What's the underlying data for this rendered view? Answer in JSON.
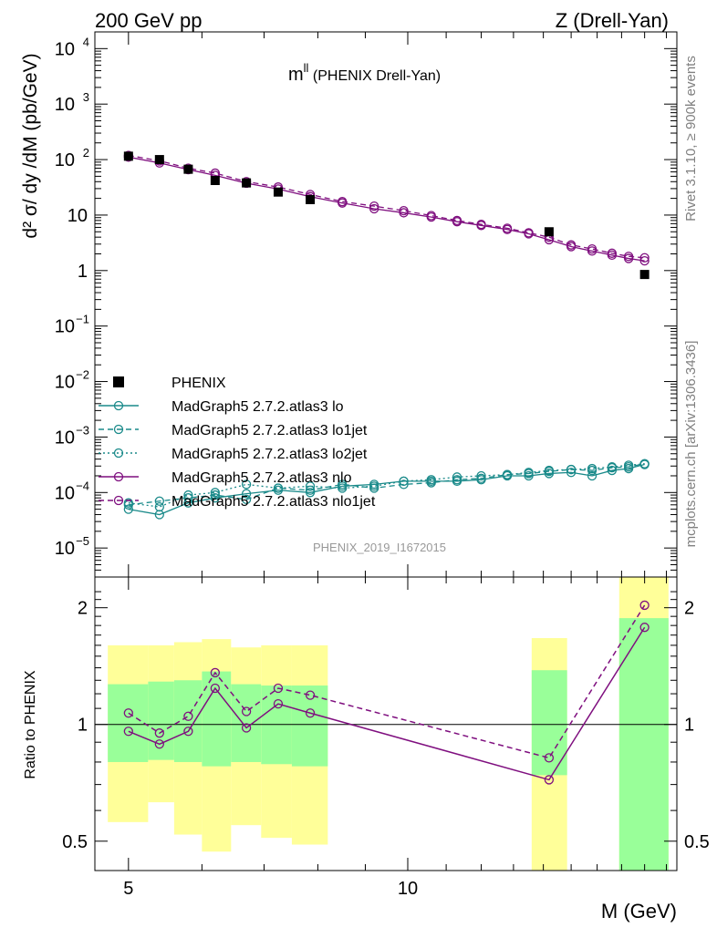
{
  "header": {
    "left": "200 GeV pp",
    "right": "Z (Drell-Yan)",
    "plot_label_main": "m",
    "plot_label_sup": "ll",
    "plot_label_rest": " (PHENIX Drell-Yan)",
    "analysis_id": "PHENIX_2019_I1672015"
  },
  "side": {
    "rivet": "Rivet 3.1.10, ≥ 900k events",
    "mcplots": "mcplots.cern.ch [arXiv:1306.3436]"
  },
  "axes": {
    "ylabel_main": "d² σ/ dy /dM (pb/GeV)",
    "ylabel_ratio": "Ratio to PHENIX",
    "xlabel": "M (GeV)"
  },
  "colors": {
    "data": "#000000",
    "teal": "#1a8a8a",
    "purple": "#7f0f7f",
    "band_inner": "#99ff99",
    "band_outer": "#ffff99"
  },
  "chart_data": {
    "type": "scatter",
    "x_scale": "log",
    "xlim": [
      4.6,
      19.5
    ],
    "main_panel": {
      "y_scale": "log",
      "ylim": [
        3e-06,
        20000
      ],
      "y_ticks": [
        {
          "v": 1e-05,
          "b": "10",
          "e": "−5"
        },
        {
          "v": 0.0001,
          "b": "10",
          "e": "−4"
        },
        {
          "v": 0.001,
          "b": "10",
          "e": "−3"
        },
        {
          "v": 0.01,
          "b": "10",
          "e": "−2"
        },
        {
          "v": 0.1,
          "b": "10",
          "e": "−1"
        },
        {
          "v": 1,
          "b": "1",
          "e": ""
        },
        {
          "v": 10,
          "b": "10",
          "e": ""
        },
        {
          "v": 100,
          "b": "10",
          "e": "2"
        },
        {
          "v": 1000,
          "b": "10",
          "e": "3"
        },
        {
          "v": 10000,
          "b": "10",
          "e": "4"
        }
      ]
    },
    "ratio_panel": {
      "y_scale": "log",
      "ylim": [
        0.42,
        2.4
      ],
      "y_ticks": [
        {
          "v": 0.5,
          "label": "0.5"
        },
        {
          "v": 1,
          "label": "1"
        },
        {
          "v": 2,
          "label": "2"
        }
      ]
    },
    "x_ticks": [
      {
        "v": 5,
        "label": "5"
      },
      {
        "v": 10,
        "label": "10"
      }
    ],
    "legend": [
      {
        "label": "PHENIX",
        "kind": "data"
      },
      {
        "label": "MadGraph5 2.7.2.atlas3 lo",
        "kind": "teal-solid"
      },
      {
        "label": "MadGraph5 2.7.2.atlas3 lo1jet",
        "kind": "teal-dashed"
      },
      {
        "label": "MadGraph5 2.7.2.atlas3 lo2jet",
        "kind": "teal-dotted"
      },
      {
        "label": "MadGraph5 2.7.2.atlas3 nlo",
        "kind": "purple-solid"
      },
      {
        "label": "MadGraph5 2.7.2.atlas3 nlo1jet",
        "kind": "purple-dashed"
      }
    ],
    "phenix": {
      "x": [
        5.0,
        5.4,
        5.8,
        6.2,
        6.7,
        7.25,
        7.85,
        14.2,
        18.0
      ],
      "y": [
        115,
        100,
        67,
        42,
        38,
        26,
        19,
        5.0,
        0.85
      ],
      "ratio_bands": [
        {
          "x0": 4.75,
          "x1": 5.25,
          "in_lo": 0.8,
          "in_hi": 1.27,
          "out_lo": 0.56,
          "out_hi": 1.6
        },
        {
          "x0": 5.25,
          "x1": 5.6,
          "in_lo": 0.81,
          "in_hi": 1.29,
          "out_lo": 0.63,
          "out_hi": 1.6
        },
        {
          "x0": 5.6,
          "x1": 6.0,
          "in_lo": 0.8,
          "in_hi": 1.3,
          "out_lo": 0.52,
          "out_hi": 1.63
        },
        {
          "x0": 6.0,
          "x1": 6.45,
          "in_lo": 0.78,
          "in_hi": 1.37,
          "out_lo": 0.47,
          "out_hi": 1.66
        },
        {
          "x0": 6.45,
          "x1": 6.95,
          "in_lo": 0.8,
          "in_hi": 1.27,
          "out_lo": 0.55,
          "out_hi": 1.58
        },
        {
          "x0": 6.95,
          "x1": 7.5,
          "in_lo": 0.79,
          "in_hi": 1.26,
          "out_lo": 0.51,
          "out_hi": 1.6
        },
        {
          "x0": 7.5,
          "x1": 8.2,
          "in_lo": 0.78,
          "in_hi": 1.26,
          "out_lo": 0.49,
          "out_hi": 1.6
        },
        {
          "x0": 13.6,
          "x1": 14.85,
          "in_lo": 0.74,
          "in_hi": 1.38,
          "out_lo": 0.42,
          "out_hi": 1.67
        },
        {
          "x0": 16.9,
          "x1": 19.1,
          "in_lo": 0.42,
          "in_hi": 1.88,
          "out_lo": 0.42,
          "out_hi": 2.4
        }
      ]
    },
    "series": [
      {
        "name": "MadGraph5 2.7.2.atlas3 lo",
        "style": "teal-solid",
        "x": [
          5.0,
          5.4,
          5.8,
          6.2,
          6.7,
          7.25,
          7.85,
          8.5,
          9.2,
          9.9,
          10.6,
          11.3,
          12.0,
          12.8,
          13.5,
          14.2,
          15.0,
          15.8,
          16.6,
          17.3,
          18.0
        ],
        "y": [
          5e-05,
          4e-05,
          6.5e-05,
          8e-05,
          9.5e-05,
          0.00011,
          0.0001,
          0.00013,
          0.00014,
          0.00016,
          0.00016,
          0.00016,
          0.00017,
          0.0002,
          0.0002,
          0.00022,
          0.00023,
          0.0002,
          0.00025,
          0.00027,
          0.00032
        ]
      },
      {
        "name": "MadGraph5 2.7.2.atlas3 lo1jet",
        "style": "teal-dashed",
        "x": [
          5.0,
          5.4,
          5.8,
          6.2,
          6.7,
          7.25,
          7.85,
          8.5,
          9.2,
          9.9,
          10.6,
          11.3,
          12.0,
          12.8,
          13.5,
          14.2,
          15.0,
          15.8,
          16.6,
          17.3,
          18.0
        ],
        "y": [
          6e-05,
          7e-05,
          8e-05,
          9e-05,
          7.5e-05,
          0.00012,
          0.00011,
          0.00014,
          0.00012,
          0.00014,
          0.00015,
          0.00017,
          0.00018,
          0.00021,
          0.00022,
          0.00024,
          0.00026,
          0.00025,
          0.00028,
          0.00029,
          0.00033
        ]
      },
      {
        "name": "MadGraph5 2.7.2.atlas3 lo2jet",
        "style": "teal-dotted",
        "x": [
          5.0,
          5.4,
          5.8,
          6.2,
          6.7,
          7.25,
          7.85,
          8.5,
          9.2,
          9.9,
          10.6,
          11.3,
          12.0,
          12.8,
          13.5,
          14.2,
          15.0,
          15.8,
          16.6,
          17.3,
          18.0
        ],
        "y": [
          6.5e-05,
          5.5e-05,
          9e-05,
          0.0001,
          0.00014,
          0.00012,
          0.00013,
          0.00012,
          0.00013,
          0.00016,
          0.00017,
          0.00019,
          0.0002,
          0.00021,
          0.00023,
          0.00025,
          0.00026,
          0.00027,
          0.00029,
          0.00031,
          0.00033
        ]
      },
      {
        "name": "MadGraph5 2.7.2.atlas3 nlo",
        "style": "purple-solid",
        "x": [
          5.0,
          5.4,
          5.8,
          6.2,
          6.7,
          7.25,
          7.85,
          8.5,
          9.2,
          9.9,
          10.6,
          11.3,
          12.0,
          12.8,
          13.5,
          14.2,
          15.0,
          15.8,
          16.6,
          17.3,
          18.0
        ],
        "y": [
          111,
          87,
          66,
          52,
          37.5,
          29.5,
          21.5,
          16.5,
          13,
          11,
          9.2,
          7.6,
          6.5,
          5.5,
          4.6,
          3.6,
          2.7,
          2.25,
          1.9,
          1.65,
          1.5
        ]
      },
      {
        "name": "MadGraph5 2.7.2.atlas3 nlo1jet",
        "style": "purple-dashed",
        "x": [
          5.0,
          5.4,
          5.8,
          6.2,
          6.7,
          7.25,
          7.85,
          8.5,
          9.2,
          9.9,
          10.6,
          11.3,
          12.0,
          12.8,
          13.5,
          14.2,
          15.0,
          15.8,
          16.6,
          17.3,
          18.0
        ],
        "y": [
          119,
          95,
          70,
          57,
          40,
          32,
          23.5,
          17.5,
          14.5,
          12,
          9.8,
          8,
          6.8,
          5.8,
          4.8,
          4.0,
          2.9,
          2.45,
          2.05,
          1.8,
          1.7
        ]
      }
    ],
    "ratio_series": [
      {
        "name": "MadGraph5 2.7.2.atlas3 nlo",
        "style": "purple-solid",
        "x": [
          5.0,
          5.4,
          5.8,
          6.2,
          6.7,
          7.25,
          7.85,
          14.2,
          18.0
        ],
        "y": [
          0.96,
          0.89,
          0.96,
          1.24,
          0.98,
          1.13,
          1.07,
          0.72,
          1.78
        ]
      },
      {
        "name": "MadGraph5 2.7.2.atlas3 nlo1jet",
        "style": "purple-dashed",
        "x": [
          5.0,
          5.4,
          5.8,
          6.2,
          6.7,
          7.25,
          7.85,
          14.2,
          18.0
        ],
        "y": [
          1.07,
          0.95,
          1.05,
          1.36,
          1.08,
          1.24,
          1.19,
          0.82,
          2.03
        ]
      }
    ]
  }
}
